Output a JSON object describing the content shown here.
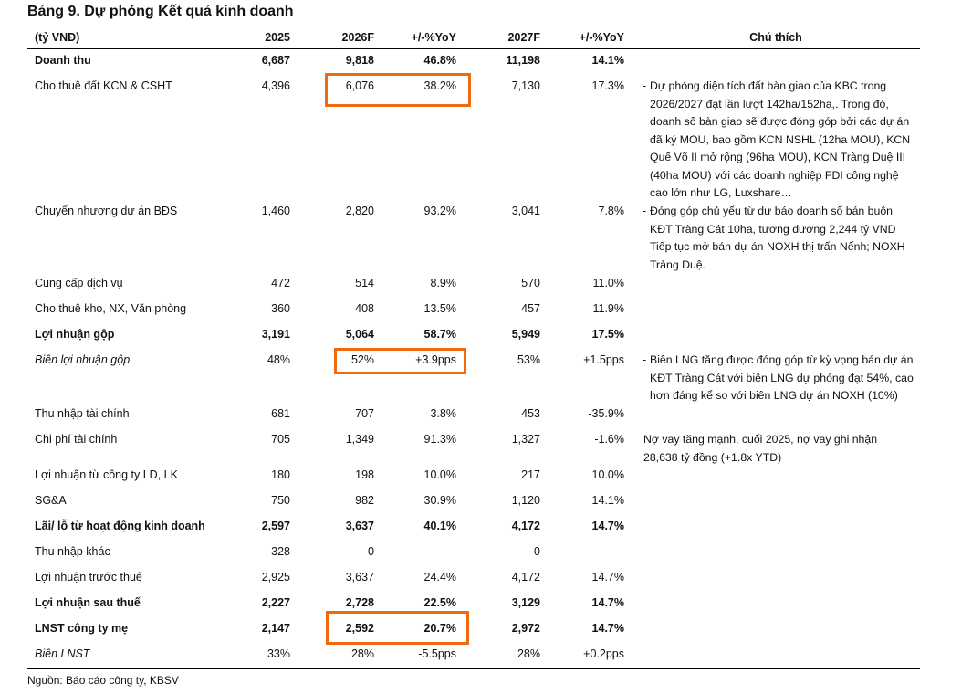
{
  "title": "Bảng 9. Dự phóng Kết quả kinh doanh",
  "header": [
    "(tỷ VNĐ)",
    "2025",
    "2026F",
    "+/-%YoY",
    "2027F",
    "+/-%YoY",
    "Chú thích"
  ],
  "rows": [
    {
      "label": "Doanh thu",
      "cells": [
        "6,687",
        "9,818",
        "46.8%",
        "11,198",
        "14.1%"
      ],
      "style": "bold"
    },
    {
      "label": "Cho thuê đất KCN & CSHT",
      "cells": [
        "4,396",
        "6,076",
        "38.2%",
        "7,130",
        "17.3%"
      ],
      "note": [
        {
          "bullet": "-",
          "lines": [
            "Dự phóng diện tích đất bàn giao của KBC trong",
            "2026/2027 đạt lần lượt 142ha/152ha,. Trong đó,",
            "doanh số bàn giao sẽ được đóng góp bởi các dự án",
            "đã ký MOU, bao gồm KCN NSHL (12ha MOU), KCN",
            "Quế Võ II mở rộng (96ha MOU), KCN Tràng Duệ III",
            "(40ha MOU) với các doanh nghiệp FDI công nghệ",
            "cao lớn như LG, Luxshare…"
          ]
        }
      ]
    },
    {
      "label": "Chuyển nhượng dự án BĐS",
      "cells": [
        "1,460",
        "2,820",
        "93.2%",
        "3,041",
        "7.8%"
      ],
      "note": [
        {
          "bullet": "-",
          "lines": [
            "Đóng góp chủ yếu từ dự báo doanh số bán buôn",
            "KĐT Tràng Cát 10ha, tương đương 2,244 tỷ VND"
          ]
        },
        {
          "bullet": "-",
          "lines": [
            "Tiếp tục mở bán dự án NOXH thị trấn Nếnh; NOXH",
            "Tràng Duệ."
          ]
        }
      ]
    },
    {
      "label": "Cung cấp dịch vụ",
      "cells": [
        "472",
        "514",
        "8.9%",
        "570",
        "11.0%"
      ]
    },
    {
      "label": "Cho thuê kho, NX, Văn phòng",
      "cells": [
        "360",
        "408",
        "13.5%",
        "457",
        "11.9%"
      ]
    },
    {
      "label": "Lợi nhuận gộp",
      "cells": [
        "3,191",
        "5,064",
        "58.7%",
        "5,949",
        "17.5%"
      ],
      "style": "bold"
    },
    {
      "label": "Biên lợi nhuận gộp",
      "cells": [
        "48%",
        "52%",
        "+3.9pps",
        "53%",
        "+1.5pps"
      ],
      "style": "italic",
      "note": [
        {
          "bullet": "-",
          "lines": [
            "Biên LNG tăng được đóng góp từ kỳ vọng bán dự án",
            "KĐT Tràng Cát với biên LNG dự phóng đạt 54%, cao",
            "hơn đáng kể so với biên LNG dự án NOXH (10%)"
          ]
        }
      ]
    },
    {
      "label": "Thu nhập tài chính",
      "cells": [
        "681",
        "707",
        "3.8%",
        "453",
        "-35.9%"
      ]
    },
    {
      "label": "Chi phí tài chính",
      "cells": [
        "705",
        "1,349",
        "91.3%",
        "1,327",
        "-1.6%"
      ],
      "note": [
        {
          "lines": [
            "Nợ vay tăng mạnh, cuối 2025, nợ vay ghi nhận",
            "28,638 tỷ đồng (+1.8x YTD)"
          ]
        }
      ]
    },
    {
      "label": "Lợi nhuận từ công ty LD, LK",
      "cells": [
        "180",
        "198",
        "10.0%",
        "217",
        "10.0%"
      ]
    },
    {
      "label": "SG&A",
      "cells": [
        "750",
        "982",
        "30.9%",
        "1,120",
        "14.1%"
      ]
    },
    {
      "label": "Lãi/ lỗ từ hoạt động kinh doanh",
      "cells": [
        "2,597",
        "3,637",
        "40.1%",
        "4,172",
        "14.7%"
      ],
      "style": "bold"
    },
    {
      "label": "Thu nhập khác",
      "cells": [
        "328",
        "0",
        "-",
        "0",
        "-"
      ]
    },
    {
      "label": "Lợi nhuận trước thuế",
      "cells": [
        "2,925",
        "3,637",
        "24.4%",
        "4,172",
        "14.7%"
      ]
    },
    {
      "label": "Lợi nhuận sau thuế",
      "cells": [
        "2,227",
        "2,728",
        "22.5%",
        "3,129",
        "14.7%"
      ],
      "style": "bold"
    },
    {
      "label": "LNST công ty mẹ",
      "cells": [
        "2,147",
        "2,592",
        "20.7%",
        "2,972",
        "14.7%"
      ],
      "style": "bold"
    },
    {
      "label": "Biên LNST",
      "cells": [
        "33%",
        "28%",
        "-5.5pps",
        "28%",
        "+0.2pps"
      ],
      "style": "italic"
    }
  ],
  "footer": "Nguồn: Báo cáo công ty, KBSV"
}
